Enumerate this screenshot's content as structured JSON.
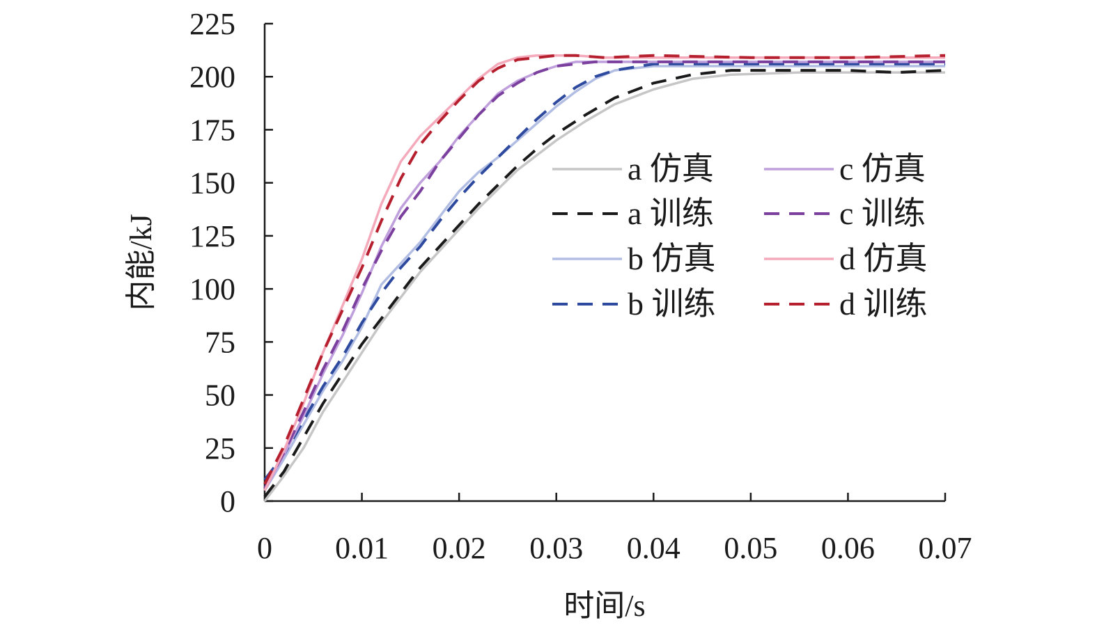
{
  "chart_data": {
    "type": "line",
    "title": "",
    "xlabel": "时间/s",
    "ylabel": "内能/kJ",
    "xlim": [
      0,
      0.07
    ],
    "ylim": [
      0,
      225
    ],
    "xticks": [
      0,
      0.01,
      0.02,
      0.03,
      0.04,
      0.05,
      0.06,
      0.07
    ],
    "xtick_labels": [
      "0",
      "0.01",
      "0.02",
      "0.03",
      "0.04",
      "0.05",
      "0.06",
      "0.07"
    ],
    "yticks": [
      0,
      25,
      50,
      75,
      100,
      125,
      150,
      175,
      200,
      225
    ],
    "ytick_labels": [
      "0",
      "25",
      "50",
      "75",
      "100",
      "125",
      "150",
      "175",
      "200",
      "225"
    ],
    "grid": false,
    "legend_position": "center-right",
    "series": [
      {
        "name": "a 仿真",
        "style": "solid",
        "color": "#c6c6c6",
        "x": [
          0,
          0.002,
          0.004,
          0.006,
          0.008,
          0.01,
          0.012,
          0.014,
          0.016,
          0.018,
          0.02,
          0.022,
          0.024,
          0.026,
          0.028,
          0.03,
          0.033,
          0.036,
          0.04,
          0.044,
          0.048,
          0.055,
          0.06,
          0.065,
          0.07
        ],
        "y": [
          0,
          12,
          25,
          42,
          56,
          70,
          84,
          96,
          108,
          118,
          128,
          138,
          147,
          156,
          163,
          170,
          179,
          187,
          194,
          199,
          201,
          202,
          202,
          202,
          202
        ]
      },
      {
        "name": "a 训练",
        "style": "dashed",
        "color": "#1a1a1a",
        "x": [
          0,
          0.002,
          0.004,
          0.006,
          0.008,
          0.01,
          0.012,
          0.014,
          0.016,
          0.018,
          0.02,
          0.022,
          0.024,
          0.026,
          0.028,
          0.03,
          0.033,
          0.036,
          0.04,
          0.044,
          0.048,
          0.055,
          0.06,
          0.065,
          0.07
        ],
        "y": [
          2,
          14,
          30,
          46,
          60,
          74,
          86,
          98,
          110,
          120,
          130,
          140,
          149,
          158,
          166,
          173,
          182,
          190,
          197,
          201,
          203,
          203,
          203,
          202,
          203
        ]
      },
      {
        "name": "b 仿真",
        "style": "solid",
        "color": "#b2bde3",
        "x": [
          0,
          0.002,
          0.004,
          0.006,
          0.008,
          0.01,
          0.012,
          0.014,
          0.016,
          0.018,
          0.02,
          0.022,
          0.024,
          0.026,
          0.028,
          0.03,
          0.032,
          0.034,
          0.036,
          0.04,
          0.045,
          0.05,
          0.06,
          0.07
        ],
        "y": [
          5,
          20,
          36,
          52,
          66,
          82,
          102,
          112,
          122,
          134,
          146,
          155,
          162,
          170,
          178,
          186,
          193,
          199,
          203,
          205,
          205,
          205,
          205,
          205
        ]
      },
      {
        "name": "b 训练",
        "style": "dashed",
        "color": "#2e4a9e",
        "x": [
          0,
          0.002,
          0.004,
          0.006,
          0.008,
          0.01,
          0.012,
          0.014,
          0.016,
          0.018,
          0.02,
          0.022,
          0.024,
          0.026,
          0.028,
          0.03,
          0.032,
          0.034,
          0.036,
          0.04,
          0.045,
          0.05,
          0.06,
          0.07
        ],
        "y": [
          10,
          22,
          38,
          54,
          68,
          84,
          98,
          110,
          120,
          132,
          143,
          153,
          162,
          171,
          180,
          188,
          195,
          200,
          203,
          206,
          206,
          206,
          206,
          206
        ]
      },
      {
        "name": "c 仿真",
        "style": "solid",
        "color": "#bf9fdc",
        "x": [
          0,
          0.002,
          0.004,
          0.006,
          0.008,
          0.01,
          0.012,
          0.014,
          0.016,
          0.018,
          0.02,
          0.022,
          0.024,
          0.026,
          0.028,
          0.03,
          0.032,
          0.034,
          0.036,
          0.04,
          0.05,
          0.06,
          0.07
        ],
        "y": [
          5,
          22,
          40,
          60,
          78,
          98,
          120,
          138,
          150,
          160,
          172,
          182,
          192,
          198,
          202,
          205,
          207,
          207,
          207,
          207,
          207,
          207,
          207
        ]
      },
      {
        "name": "c 训练",
        "style": "dashed",
        "color": "#7b3f9e",
        "x": [
          0,
          0.002,
          0.004,
          0.006,
          0.008,
          0.01,
          0.012,
          0.014,
          0.016,
          0.018,
          0.02,
          0.022,
          0.024,
          0.026,
          0.028,
          0.03,
          0.032,
          0.034,
          0.036,
          0.04,
          0.05,
          0.06,
          0.07
        ],
        "y": [
          6,
          23,
          42,
          62,
          80,
          100,
          118,
          134,
          146,
          160,
          171,
          182,
          191,
          197,
          202,
          205,
          206,
          207,
          207,
          207,
          207,
          207,
          207
        ]
      },
      {
        "name": "d 仿真",
        "style": "solid",
        "color": "#f4aabb",
        "x": [
          0,
          0.002,
          0.004,
          0.006,
          0.008,
          0.01,
          0.012,
          0.014,
          0.016,
          0.018,
          0.02,
          0.022,
          0.024,
          0.026,
          0.028,
          0.03,
          0.032,
          0.035,
          0.04,
          0.05,
          0.06,
          0.07
        ],
        "y": [
          5,
          24,
          46,
          70,
          92,
          114,
          140,
          160,
          172,
          181,
          190,
          199,
          206,
          209,
          210,
          210,
          210,
          209,
          209,
          209,
          209,
          209
        ]
      },
      {
        "name": "d 训练",
        "style": "dashed",
        "color": "#b51f2e",
        "x": [
          0,
          0.002,
          0.004,
          0.006,
          0.008,
          0.01,
          0.012,
          0.014,
          0.016,
          0.018,
          0.02,
          0.022,
          0.024,
          0.026,
          0.028,
          0.03,
          0.032,
          0.035,
          0.04,
          0.05,
          0.06,
          0.07
        ],
        "y": [
          8,
          26,
          48,
          70,
          90,
          110,
          132,
          152,
          168,
          179,
          189,
          198,
          204,
          208,
          209,
          210,
          210,
          209,
          210,
          209,
          209,
          210
        ]
      }
    ]
  }
}
